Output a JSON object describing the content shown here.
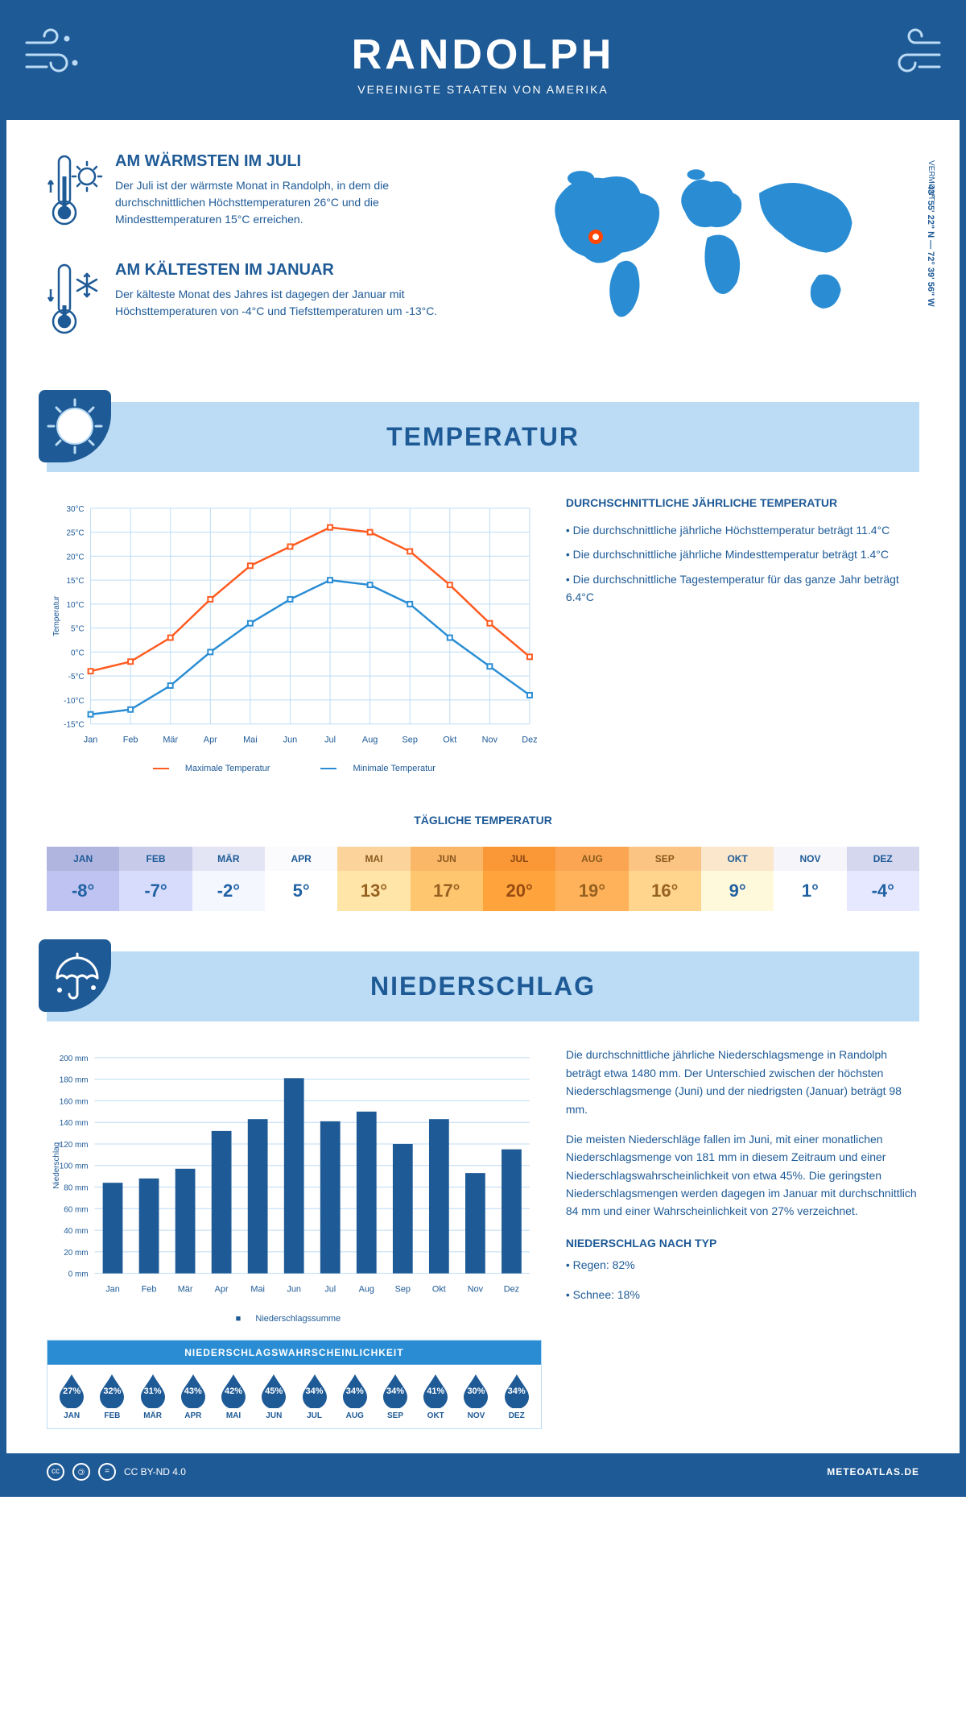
{
  "header": {
    "title": "RANDOLPH",
    "subtitle": "VEREINIGTE STAATEN VON AMERIKA"
  },
  "location": {
    "region": "VERMONT",
    "coords": "43° 55' 22\" N — 72° 39' 56\" W"
  },
  "warmest": {
    "title": "AM WÄRMSTEN IM JULI",
    "text": "Der Juli ist der wärmste Monat in Randolph, in dem die durchschnittlichen Höchsttemperaturen 26°C und die Mindesttemperaturen 15°C erreichen."
  },
  "coldest": {
    "title": "AM KÄLTESTEN IM JANUAR",
    "text": "Der kälteste Monat des Jahres ist dagegen der Januar mit Höchsttemperaturen von -4°C und Tiefsttemperaturen um -13°C."
  },
  "sections": {
    "temp": "TEMPERATUR",
    "precip": "NIEDERSCHLAG"
  },
  "temp_chart": {
    "type": "line",
    "months": [
      "Jan",
      "Feb",
      "Mär",
      "Apr",
      "Mai",
      "Jun",
      "Jul",
      "Aug",
      "Sep",
      "Okt",
      "Nov",
      "Dez"
    ],
    "max_values": [
      -4,
      -2,
      3,
      11,
      18,
      22,
      26,
      25,
      21,
      14,
      6,
      -1
    ],
    "min_values": [
      -13,
      -12,
      -7,
      0,
      6,
      11,
      15,
      14,
      10,
      3,
      -3,
      -9
    ],
    "max_color": "#ff5a1f",
    "min_color": "#2a8dd4",
    "ylim": [
      -15,
      30
    ],
    "ytick_step": 5,
    "grid_color": "#bcdcf5",
    "ylabel": "Temperatur",
    "legend_max": "Maximale Temperatur",
    "legend_min": "Minimale Temperatur"
  },
  "temp_text": {
    "title": "DURCHSCHNITTLICHE JÄHRLICHE TEMPERATUR",
    "b1": "• Die durchschnittliche jährliche Höchsttemperatur beträgt 11.4°C",
    "b2": "• Die durchschnittliche jährliche Mindesttemperatur beträgt 1.4°C",
    "b3": "• Die durchschnittliche Tagestemperatur für das ganze Jahr beträgt 6.4°C"
  },
  "daily_temp": {
    "title": "TÄGLICHE TEMPERATUR",
    "months": [
      "JAN",
      "FEB",
      "MÄR",
      "APR",
      "MAI",
      "JUN",
      "JUL",
      "AUG",
      "SEP",
      "OKT",
      "NOV",
      "DEZ"
    ],
    "values": [
      "-8°",
      "-7°",
      "-2°",
      "5°",
      "13°",
      "17°",
      "20°",
      "19°",
      "16°",
      "9°",
      "1°",
      "-4°"
    ],
    "bg_colors": [
      "#b0b5e0",
      "#c7cbe9",
      "#e3e5f4",
      "#fbfbfd",
      "#fcd49b",
      "#fbb768",
      "#fa9838",
      "#fba552",
      "#fcc482",
      "#fae7cc",
      "#f5f5fa",
      "#d5d7ee"
    ],
    "text_colors": [
      "#1e5a96",
      "#1e5a96",
      "#1e5a96",
      "#1e5a96",
      "#8a5a1e",
      "#8a5a1e",
      "#8a4510",
      "#8a5a1e",
      "#8a5a1e",
      "#1e5a96",
      "#1e5a96",
      "#1e5a96"
    ]
  },
  "precip_chart": {
    "type": "bar",
    "months": [
      "Jan",
      "Feb",
      "Mär",
      "Apr",
      "Mai",
      "Jun",
      "Jul",
      "Aug",
      "Sep",
      "Okt",
      "Nov",
      "Dez"
    ],
    "values": [
      84,
      88,
      97,
      132,
      143,
      181,
      141,
      150,
      120,
      143,
      93,
      115
    ],
    "bar_color": "#1e5a96",
    "ylim": [
      0,
      200
    ],
    "ytick_step": 20,
    "grid_color": "#bcdcf5",
    "ylabel": "Niederschlag",
    "legend": "Niederschlagssumme"
  },
  "precip_text": {
    "p1": "Die durchschnittliche jährliche Niederschlagsmenge in Randolph beträgt etwa 1480 mm. Der Unterschied zwischen der höchsten Niederschlagsmenge (Juni) und der niedrigsten (Januar) beträgt 98 mm.",
    "p2": "Die meisten Niederschläge fallen im Juni, mit einer monatlichen Niederschlagsmenge von 181 mm in diesem Zeitraum und einer Niederschlagswahrscheinlichkeit von etwa 45%. Die geringsten Niederschlagsmengen werden dagegen im Januar mit durchschnittlich 84 mm und einer Wahrscheinlichkeit von 27% verzeichnet.",
    "type_title": "NIEDERSCHLAG NACH TYP",
    "rain": "• Regen: 82%",
    "snow": "• Schnee: 18%"
  },
  "precip_prob": {
    "title": "NIEDERSCHLAGSWAHRSCHEINLICHKEIT",
    "months": [
      "JAN",
      "FEB",
      "MÄR",
      "APR",
      "MAI",
      "JUN",
      "JUL",
      "AUG",
      "SEP",
      "OKT",
      "NOV",
      "DEZ"
    ],
    "values": [
      "27%",
      "32%",
      "31%",
      "43%",
      "42%",
      "45%",
      "34%",
      "34%",
      "34%",
      "41%",
      "30%",
      "34%"
    ],
    "drop_color": "#1e5a96"
  },
  "footer": {
    "license": "CC BY-ND 4.0",
    "site": "METEOATLAS.DE"
  },
  "colors": {
    "brand": "#1e5a96",
    "light": "#bcdcf5",
    "accent": "#2a8dd4"
  }
}
